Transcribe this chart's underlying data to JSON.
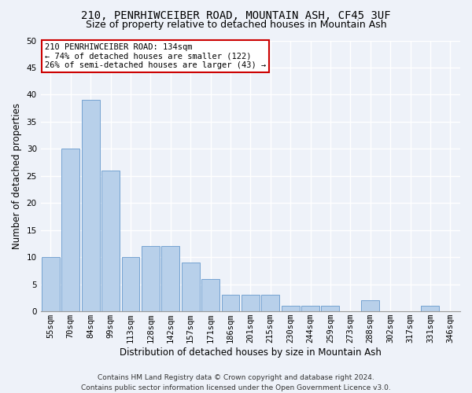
{
  "title_line1": "210, PENRHIWCEIBER ROAD, MOUNTAIN ASH, CF45 3UF",
  "title_line2": "Size of property relative to detached houses in Mountain Ash",
  "xlabel": "Distribution of detached houses by size in Mountain Ash",
  "ylabel": "Number of detached properties",
  "categories": [
    "55sqm",
    "70sqm",
    "84sqm",
    "99sqm",
    "113sqm",
    "128sqm",
    "142sqm",
    "157sqm",
    "171sqm",
    "186sqm",
    "201sqm",
    "215sqm",
    "230sqm",
    "244sqm",
    "259sqm",
    "273sqm",
    "288sqm",
    "302sqm",
    "317sqm",
    "331sqm",
    "346sqm"
  ],
  "values": [
    10,
    30,
    39,
    26,
    10,
    12,
    12,
    9,
    6,
    3,
    3,
    3,
    1,
    1,
    1,
    0,
    2,
    0,
    0,
    1,
    0
  ],
  "bar_color": "#b8d0ea",
  "bar_edge_color": "#6699cc",
  "annotation_text": "210 PENRHIWCEIBER ROAD: 134sqm\n← 74% of detached houses are smaller (122)\n26% of semi-detached houses are larger (43) →",
  "annotation_box_color": "#ffffff",
  "annotation_box_edge_color": "#cc0000",
  "ylim": [
    0,
    50
  ],
  "yticks": [
    0,
    5,
    10,
    15,
    20,
    25,
    30,
    35,
    40,
    45,
    50
  ],
  "footer_line1": "Contains HM Land Registry data © Crown copyright and database right 2024.",
  "footer_line2": "Contains public sector information licensed under the Open Government Licence v3.0.",
  "bg_color": "#eef2f9",
  "grid_color": "#ffffff",
  "title_fontsize": 10,
  "subtitle_fontsize": 9,
  "axis_label_fontsize": 8.5,
  "tick_fontsize": 7.5,
  "annotation_fontsize": 7.5,
  "footer_fontsize": 6.5
}
